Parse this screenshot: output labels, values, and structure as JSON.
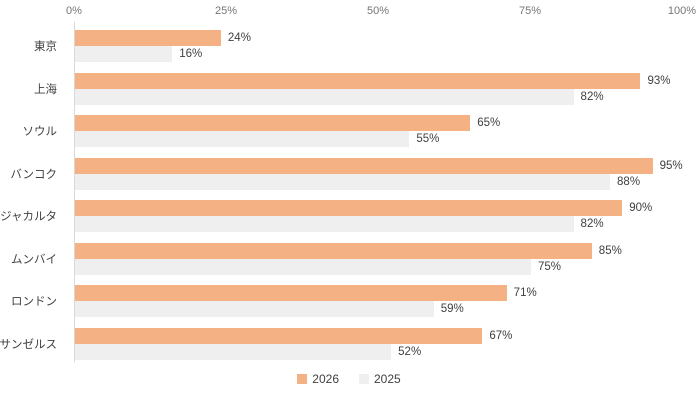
{
  "chart_data": {
    "type": "bar",
    "orientation": "horizontal",
    "title": "",
    "categories": [
      "東京",
      "上海",
      "ソウル",
      "バンコク",
      "ジャカルタ",
      "ムンバイ",
      "ロンドン",
      "ロサンゼルス"
    ],
    "series": [
      {
        "name": "2026",
        "color": "#F4B183",
        "values": [
          24,
          93,
          65,
          95,
          90,
          85,
          71,
          67
        ]
      },
      {
        "name": "2025",
        "color": "#EFEFEF",
        "values": [
          16,
          82,
          55,
          88,
          82,
          75,
          59,
          52
        ]
      }
    ],
    "value_suffix": "%",
    "x_axis": {
      "position": "top",
      "min": 0,
      "max": 100,
      "ticks": [
        "0%",
        "25%",
        "50%",
        "75%",
        "100%"
      ]
    },
    "legend": {
      "position": "bottom",
      "entries": [
        "2026",
        "2025"
      ]
    },
    "grid": false,
    "data_labels": true
  },
  "colors": {
    "bar_2026": "#F4B183",
    "bar_2025": "#EFEFEF",
    "axis_line": "#D9D9D9",
    "tick_text": "#757575",
    "label_text": "#404040",
    "background": "#FFFFFF"
  }
}
